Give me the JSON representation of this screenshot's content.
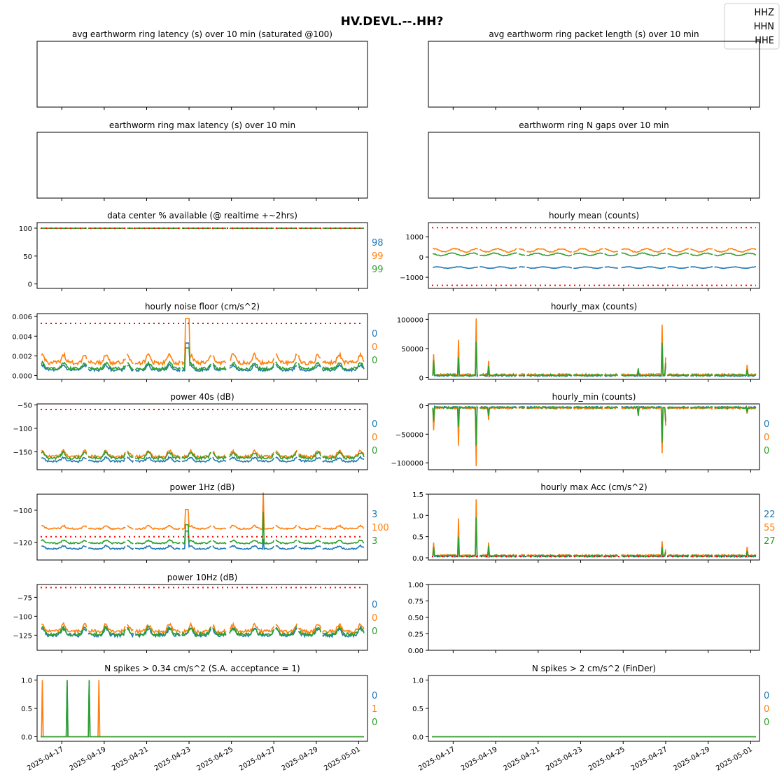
{
  "figure_title": "HV.DEVL.--.HH?",
  "legend": [
    "HHZ",
    "HHN",
    "HHE"
  ],
  "colors": {
    "HHZ": "#1f77b4",
    "HHN": "#ff7f0e",
    "HHE": "#2ca02c",
    "threshold": "#ff0000"
  },
  "x_axis": {
    "start": "2025-04-16",
    "end": "2025-05-01T06:00",
    "ticks": [
      "2025-04-17",
      "2025-04-19",
      "2025-04-21",
      "2025-04-23",
      "2025-04-25",
      "2025-04-27",
      "2025-04-29",
      "2025-05-01"
    ]
  },
  "chart_data": [
    {
      "id": "ring-latency",
      "type": "line",
      "title": "avg earthworm ring latency (s)   over 10 min (saturated @100)",
      "series": [],
      "empty": true
    },
    {
      "id": "ring-packet",
      "type": "line",
      "title": "avg earthworm ring packet length (s)   over 10 min",
      "series": [],
      "empty": true
    },
    {
      "id": "ring-max-latency",
      "type": "line",
      "title": "earthworm ring max latency (s)   over 10 min",
      "series": [],
      "empty": true
    },
    {
      "id": "ring-gaps",
      "type": "line",
      "title": "earthworm ring N gaps   over 10 min",
      "series": [],
      "empty": true
    },
    {
      "id": "availability",
      "type": "line",
      "title": "data center % available (@ realtime +~2hrs)",
      "ylim": [
        -8,
        110
      ],
      "yticks": [
        "100",
        "50",
        "0"
      ],
      "ytick_values": [
        100,
        50,
        0
      ],
      "threshold": [
        100
      ],
      "series": [
        {
          "name": "HHZ",
          "pattern": "flat",
          "base": 99.7,
          "amp": 0,
          "values": []
        },
        {
          "name": "HHN",
          "pattern": "flat",
          "base": 99.8,
          "amp": 0,
          "values": []
        },
        {
          "name": "HHE",
          "pattern": "flat",
          "base": 99.9,
          "amp": 0,
          "values": []
        }
      ],
      "stats": [
        "98",
        "99",
        "99"
      ]
    },
    {
      "id": "hourly-mean",
      "type": "line",
      "title": "hourly mean (counts)",
      "ylim": [
        -1550,
        1700
      ],
      "yticks": [
        "1000",
        "0",
        "−1000"
      ],
      "ytick_values": [
        1000,
        0,
        -1000
      ],
      "threshold": [
        1450,
        -1400
      ],
      "series": [
        {
          "name": "HHZ",
          "pattern": "wave",
          "base": -520,
          "amp": 35
        },
        {
          "name": "HHN",
          "pattern": "wave",
          "base": 330,
          "amp": 80
        },
        {
          "name": "HHE",
          "pattern": "wave",
          "base": 130,
          "amp": 60
        }
      ]
    },
    {
      "id": "noise-floor",
      "type": "line",
      "title": "hourly noise floor (cm/s^2)",
      "ylim": [
        -0.0004,
        0.0063
      ],
      "yticks": [
        "0.006",
        "0.004",
        "0.002",
        "0.000"
      ],
      "ytick_values": [
        0.006,
        0.004,
        0.002,
        0.0
      ],
      "threshold": [
        0.0053
      ],
      "series": [
        {
          "name": "HHZ",
          "pattern": "daily",
          "base": 0.00055,
          "amp": 0.0005,
          "values": []
        },
        {
          "name": "HHN",
          "pattern": "daily",
          "base": 0.0013,
          "amp": 0.0008,
          "values": []
        },
        {
          "name": "HHE",
          "pattern": "daily",
          "base": 0.0007,
          "amp": 0.0006,
          "values": []
        }
      ],
      "events": [
        {
          "date": "2025-04-22T20:00",
          "HHZ": 0.0033,
          "HHN": 0.0058,
          "HHE": 0.0028,
          "plateau": "2025-04-23T00:00"
        }
      ],
      "stats": [
        "0",
        "0",
        "0"
      ]
    },
    {
      "id": "hourly-max",
      "type": "line",
      "title": "hourly_max (counts)",
      "ylim": [
        -3000,
        110000
      ],
      "yticks": [
        "100000",
        "50000",
        "0"
      ],
      "ytick_values": [
        100000,
        50000,
        0
      ],
      "series": [
        {
          "name": "HHZ",
          "pattern": "noise",
          "base": 3000,
          "amp": 2000
        },
        {
          "name": "HHN",
          "pattern": "noise",
          "base": 4500,
          "amp": 2500
        },
        {
          "name": "HHE",
          "pattern": "noise",
          "base": 3500,
          "amp": 2200
        }
      ],
      "events": [
        {
          "date": "2025-04-16T02:00",
          "HHZ": 15000,
          "HHN": 40000,
          "HHE": 30000
        },
        {
          "date": "2025-04-17T06:00",
          "HHZ": 30000,
          "HHN": 65000,
          "HHE": 35000
        },
        {
          "date": "2025-04-18T02:00",
          "HHZ": 60000,
          "HHN": 102000,
          "HHE": 62000
        },
        {
          "date": "2025-04-18T16:00",
          "HHZ": 15000,
          "HHN": 29000,
          "HHE": 20000
        },
        {
          "date": "2025-04-26T20:00",
          "HHZ": 60000,
          "HHN": 91000,
          "HHE": 60000
        },
        {
          "date": "2025-04-27T00:00",
          "HHZ": 20000,
          "HHN": 35000,
          "HHE": 25000
        },
        {
          "date": "2025-04-25T17:00",
          "HHZ": 10000,
          "HHN": 14000,
          "HHE": 16000
        },
        {
          "date": "2025-04-30T20:00",
          "HHZ": 15000,
          "HHN": 22000,
          "HHE": 14000
        }
      ]
    },
    {
      "id": "power-40s",
      "type": "line",
      "title": "power 40s (dB)",
      "ylim": [
        -188,
        -48
      ],
      "yticks": [
        "−50",
        "−100",
        "−150"
      ],
      "ytick_values": [
        -50,
        -100,
        -150
      ],
      "threshold": [
        -60
      ],
      "series": [
        {
          "name": "HHZ",
          "pattern": "daily",
          "base": -170,
          "amp": 8
        },
        {
          "name": "HHN",
          "pattern": "daily",
          "base": -160,
          "amp": 12
        },
        {
          "name": "HHE",
          "pattern": "daily",
          "base": -163,
          "amp": 12
        }
      ],
      "stats": [
        "0",
        "0",
        "0"
      ]
    },
    {
      "id": "hourly-min",
      "type": "line",
      "title": "hourly_min (counts)",
      "ylim": [
        -112000,
        3000
      ],
      "yticks": [
        "0",
        "−50000",
        "−100000"
      ],
      "ytick_values": [
        0,
        -50000,
        -100000
      ],
      "series": [
        {
          "name": "HHZ",
          "pattern": "noise",
          "base": -3500,
          "amp": 2000
        },
        {
          "name": "HHN",
          "pattern": "noise",
          "base": -5000,
          "amp": 2500
        },
        {
          "name": "HHE",
          "pattern": "noise",
          "base": -4000,
          "amp": 2200
        }
      ],
      "events": [
        {
          "date": "2025-04-16T02:00",
          "HHZ": -20000,
          "HHN": -43000,
          "HHE": -28000
        },
        {
          "date": "2025-04-17T06:00",
          "HHZ": -30000,
          "HHN": -70000,
          "HHE": -37000
        },
        {
          "date": "2025-04-18T02:00",
          "HHZ": -60000,
          "HHN": -106000,
          "HHE": -70000
        },
        {
          "date": "2025-04-18T16:00",
          "HHZ": -15000,
          "HHN": -25000,
          "HHE": -18000
        },
        {
          "date": "2025-04-26T20:00",
          "HHZ": -60000,
          "HHN": -83000,
          "HHE": -65000
        },
        {
          "date": "2025-04-27T00:00",
          "HHZ": -25000,
          "HHN": -35000,
          "HHE": -28000
        },
        {
          "date": "2025-04-25T17:00",
          "HHZ": -12000,
          "HHN": -15000,
          "HHE": -18000
        },
        {
          "date": "2025-04-30T20:00",
          "HHZ": -10000,
          "HHN": -14000,
          "HHE": -12000
        }
      ],
      "stats": [
        "0",
        "0",
        "0"
      ]
    },
    {
      "id": "power-1hz",
      "type": "line",
      "title": "power 1Hz (dB)",
      "ylim": [
        -131,
        -90
      ],
      "yticks": [
        "−100",
        "−120"
      ],
      "ytick_values": [
        -100,
        -120
      ],
      "threshold": [
        -116.5
      ],
      "series": [
        {
          "name": "HHZ",
          "pattern": "daily",
          "base": -124,
          "amp": 1.8
        },
        {
          "name": "HHN",
          "pattern": "daily",
          "base": -111.5,
          "amp": 1.8
        },
        {
          "name": "HHE",
          "pattern": "daily",
          "base": -120.5,
          "amp": 1.8
        }
      ],
      "events": [
        {
          "date": "2025-04-22T20:00",
          "HHZ": -113,
          "HHN": -99.5,
          "HHE": -109,
          "plateau": "2025-04-22T23:00"
        },
        {
          "date": "2025-04-26T12:00",
          "HHZ": -118,
          "HHN": -89,
          "HHE": -101
        }
      ],
      "stats": [
        "3",
        "100",
        "3"
      ]
    },
    {
      "id": "hourly-max-acc",
      "type": "line",
      "title": "hourly max Acc (cm/s^2)",
      "ylim": [
        -0.05,
        1.5
      ],
      "yticks": [
        "1.5",
        "1.0",
        "0.5",
        "0.0"
      ],
      "ytick_values": [
        1.5,
        1.0,
        0.5,
        0.0
      ],
      "threshold": [
        0.03
      ],
      "series": [
        {
          "name": "HHZ",
          "pattern": "noise",
          "base": 0.03,
          "amp": 0.025
        },
        {
          "name": "HHN",
          "pattern": "noise",
          "base": 0.05,
          "amp": 0.03
        },
        {
          "name": "HHE",
          "pattern": "noise",
          "base": 0.04,
          "amp": 0.03
        }
      ],
      "events": [
        {
          "date": "2025-04-16T02:00",
          "HHZ": 0.2,
          "HHN": 0.36,
          "HHE": 0.25
        },
        {
          "date": "2025-04-17T06:00",
          "HHZ": 0.45,
          "HHN": 0.93,
          "HHE": 0.5
        },
        {
          "date": "2025-04-18T02:00",
          "HHZ": 0.9,
          "HHN": 1.38,
          "HHE": 0.95
        },
        {
          "date": "2025-04-18T16:00",
          "HHZ": 0.2,
          "HHN": 0.36,
          "HHE": 0.28
        },
        {
          "date": "2025-04-26T20:00",
          "HHZ": 0.2,
          "HHN": 0.39,
          "HHE": 0.25
        },
        {
          "date": "2025-04-27T00:00",
          "HHZ": 0.12,
          "HHN": 0.2,
          "HHE": 0.15
        },
        {
          "date": "2025-04-30T20:00",
          "HHZ": 0.15,
          "HHN": 0.26,
          "HHE": 0.16
        }
      ],
      "stats": [
        "22",
        "55",
        "27"
      ]
    },
    {
      "id": "power-10hz",
      "type": "line",
      "title": "power 10Hz (dB)",
      "ylim": [
        -145,
        -58
      ],
      "yticks": [
        "−75",
        "−100",
        "−125"
      ],
      "ytick_values": [
        -75,
        -100,
        -125
      ],
      "threshold": [
        -62
      ],
      "series": [
        {
          "name": "HHZ",
          "pattern": "daily",
          "base": -125,
          "amp": 9
        },
        {
          "name": "HHN",
          "pattern": "daily",
          "base": -120,
          "amp": 9
        },
        {
          "name": "HHE",
          "pattern": "daily",
          "base": -124,
          "amp": 9
        }
      ],
      "stats": [
        "0",
        "0",
        "0"
      ]
    },
    {
      "id": "empty",
      "type": "line",
      "title": "",
      "ylim": [
        0,
        1
      ],
      "yticks": [
        "1.00",
        "0.75",
        "0.50",
        "0.25",
        "0.00"
      ],
      "ytick_values": [
        1,
        0.75,
        0.5,
        0.25,
        0
      ],
      "series": []
    },
    {
      "id": "spikes-sa",
      "type": "line",
      "title": "N spikes > 0.34 cm/s^2 (S.A. acceptance = 1)",
      "ylim": [
        -0.08,
        1.08
      ],
      "yticks": [
        "1.0",
        "0.5",
        "0.0"
      ],
      "ytick_values": [
        1.0,
        0.5,
        0.0
      ],
      "series": [
        {
          "name": "HHZ",
          "pattern": "zero",
          "base": 0,
          "amp": 0
        },
        {
          "name": "HHN",
          "pattern": "zero",
          "base": 0,
          "amp": 0
        },
        {
          "name": "HHE",
          "pattern": "zero",
          "base": 0,
          "amp": 0
        }
      ],
      "events": [
        {
          "date": "2025-04-16T02:00",
          "HHN": 1
        },
        {
          "date": "2025-04-17T06:00",
          "HHZ": 1,
          "HHE": 1
        },
        {
          "date": "2025-04-18T07:00",
          "HHZ": 1,
          "HHE": 1
        },
        {
          "date": "2025-04-18T18:00",
          "HHN": 1
        }
      ],
      "stats": [
        "0",
        "1",
        "0"
      ]
    },
    {
      "id": "spikes-finder",
      "type": "line",
      "title": "N spikes > 2 cm/s^2 (FinDer)",
      "ylim": [
        -0.08,
        1.08
      ],
      "yticks": [
        "1.0",
        "0.5",
        "0.0"
      ],
      "ytick_values": [
        1.0,
        0.5,
        0.0
      ],
      "series": [
        {
          "name": "HHZ",
          "pattern": "zero",
          "base": 0,
          "amp": 0
        },
        {
          "name": "HHN",
          "pattern": "zero",
          "base": 0,
          "amp": 0
        },
        {
          "name": "HHE",
          "pattern": "zero",
          "base": 0,
          "amp": 0
        }
      ],
      "stats": [
        "0",
        "0",
        "0"
      ]
    }
  ]
}
